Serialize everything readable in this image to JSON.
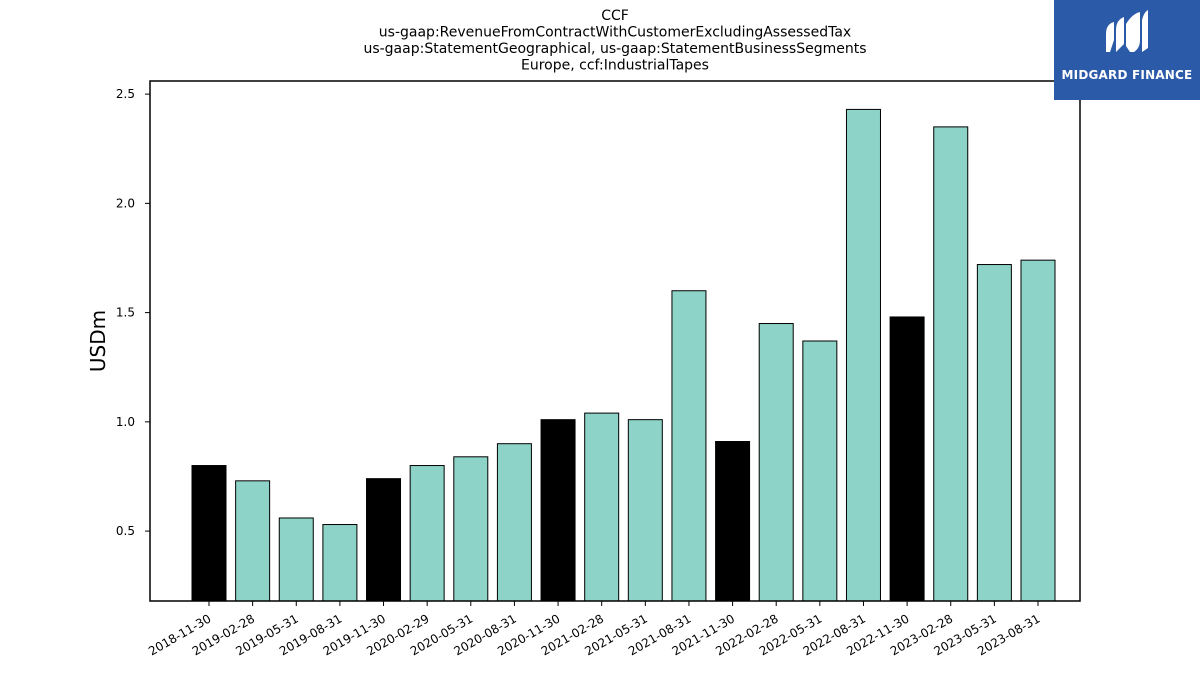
{
  "chart_data": {
    "type": "bar",
    "title_lines": [
      "CCF",
      "us-gaap:RevenueFromContractWithCustomerExcludingAssessedTax",
      "us-gaap:StatementGeographical, us-gaap:StatementBusinessSegments",
      "Europe, ccf:IndustrialTapes"
    ],
    "xlabel": "",
    "ylabel": "USDm",
    "ylim": [
      0.18,
      2.56
    ],
    "yticks": [
      0.5,
      1.0,
      1.5,
      2.0,
      2.5
    ],
    "ytick_labels": [
      "0.5",
      "1.0",
      "1.5",
      "2.0",
      "2.5"
    ],
    "categories": [
      "2018-11-30",
      "2019-02-28",
      "2019-05-31",
      "2019-08-31",
      "2019-11-30",
      "2020-02-29",
      "2020-05-31",
      "2020-08-31",
      "2020-11-30",
      "2021-02-28",
      "2021-05-31",
      "2021-08-31",
      "2021-11-30",
      "2022-02-28",
      "2022-05-31",
      "2022-08-31",
      "2022-11-30",
      "2023-02-28",
      "2023-05-31",
      "2023-08-31"
    ],
    "values": [
      0.8,
      0.73,
      0.56,
      0.53,
      0.74,
      0.8,
      0.84,
      0.9,
      1.01,
      1.04,
      1.01,
      1.6,
      0.91,
      1.45,
      1.37,
      2.43,
      1.48,
      2.35,
      1.72,
      1.74
    ],
    "highlight": [
      true,
      false,
      false,
      false,
      true,
      false,
      false,
      false,
      true,
      false,
      false,
      false,
      true,
      false,
      false,
      false,
      true,
      false,
      false,
      false
    ],
    "colors": {
      "bar": "#8dd3c7",
      "highlight": "#000000",
      "edge": "#000000"
    },
    "grid": false,
    "legend": "none"
  },
  "logo": {
    "text": "MIDGARD FINANCE",
    "background": "#2b5aa8"
  }
}
